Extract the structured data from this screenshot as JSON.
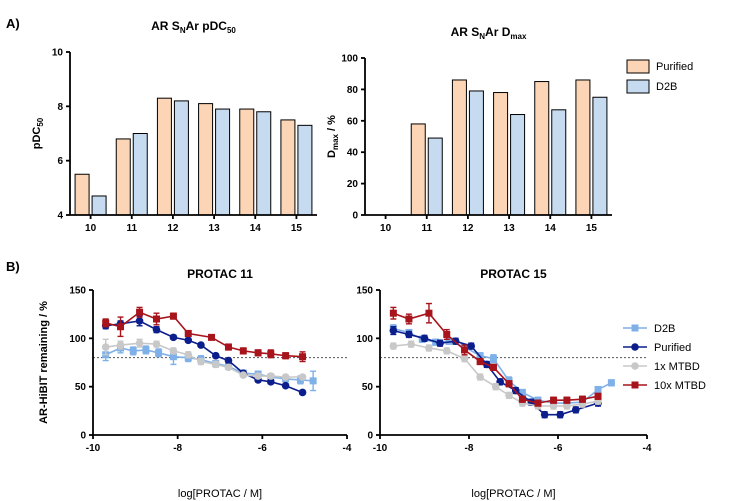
{
  "panel_labels": {
    "a": "A)",
    "b": "B)"
  },
  "colors": {
    "purified": "#FBD5B5",
    "d2b": "#C6DBEF",
    "bar_stroke": "#000000",
    "line_d2b": "#7FB1E8",
    "line_purified": "#0B1E8C",
    "line_1x": "#C8C8C8",
    "line_10x": "#A8141C",
    "ref_line": "#555555"
  },
  "chart_data": [
    {
      "id": "pdc50",
      "type": "bar",
      "title": {
        "main": "AR S",
        "sub": "N",
        "rest": "Ar pDC",
        "sub2": "50"
      },
      "ylabel": {
        "main": "pDC",
        "sub": "50"
      },
      "categories": [
        "10",
        "11",
        "12",
        "13",
        "14",
        "15"
      ],
      "yticks": [
        "4",
        "6",
        "8",
        "10"
      ],
      "ylim": [
        4,
        10
      ],
      "series": [
        {
          "name": "Purified",
          "values": [
            5.5,
            6.8,
            8.3,
            8.1,
            7.9,
            7.5
          ]
        },
        {
          "name": "D2B",
          "values": [
            4.7,
            7.0,
            8.2,
            7.9,
            7.8,
            7.3
          ]
        }
      ]
    },
    {
      "id": "dmax",
      "type": "bar",
      "title": {
        "main": "AR S",
        "sub": "N",
        "rest": "Ar D",
        "sub2": "max"
      },
      "ylabel": {
        "main": "D",
        "sub": "max",
        "rest": " / %"
      },
      "categories": [
        "10",
        "11",
        "12",
        "13",
        "14",
        "15"
      ],
      "yticks": [
        "0",
        "20",
        "40",
        "60",
        "80",
        "100"
      ],
      "ylim": [
        0,
        100
      ],
      "legend": [
        "Purified",
        "D2B"
      ],
      "series": [
        {
          "name": "Purified",
          "values": [
            0,
            58,
            86,
            78,
            85,
            86
          ]
        },
        {
          "name": "D2B",
          "values": [
            0,
            49,
            79,
            64,
            67,
            75
          ]
        }
      ]
    },
    {
      "id": "protac11",
      "type": "line",
      "title": "PROTAC 11",
      "xlabel": "log[PROTAC / M]",
      "ylabel": "AR-HiBIT remaining / %",
      "xlim": [
        -10,
        -4
      ],
      "ylim": [
        0,
        150
      ],
      "xticks": [
        "-10",
        "-8",
        "-6",
        "-4"
      ],
      "yticks": [
        "0",
        "50",
        "100",
        "150"
      ],
      "reference_y": 80,
      "series": [
        {
          "name": "D2B",
          "marker": "square",
          "x": [
            -9.7,
            -9.35,
            -9.05,
            -8.75,
            -8.45,
            -8.1,
            -7.75,
            -7.45,
            -7.1,
            -6.8,
            -6.45,
            -6.1,
            -5.8,
            -5.45,
            -5.1,
            -4.8
          ],
          "y": [
            83,
            90,
            87,
            88,
            85,
            81,
            80,
            78,
            74,
            71,
            64,
            63,
            60,
            58,
            57,
            56
          ],
          "err": [
            6,
            5,
            4,
            4,
            4,
            8,
            4,
            4,
            3,
            3,
            3,
            3,
            3,
            3,
            4,
            10
          ]
        },
        {
          "name": "Purified",
          "marker": "circle",
          "x": [
            -9.7,
            -9.35,
            -8.9,
            -8.5,
            -8.1,
            -7.75,
            -7.45,
            -7.1,
            -6.8,
            -6.45,
            -6.1,
            -5.8,
            -5.45,
            -5.05
          ],
          "y": [
            113,
            115,
            118,
            109,
            101,
            98,
            93,
            82,
            77,
            64,
            57,
            55,
            51,
            44
          ],
          "err": [
            3,
            3,
            5,
            3,
            2,
            2,
            2,
            2,
            2,
            2,
            2,
            2,
            2,
            2
          ]
        },
        {
          "name": "1x MTBD",
          "marker": "circle",
          "x": [
            -9.7,
            -9.35,
            -8.9,
            -8.5,
            -8.1,
            -7.75,
            -7.45,
            -7.1,
            -6.8,
            -6.45,
            -6.1,
            -5.8,
            -5.45,
            -5.05
          ],
          "y": [
            91,
            93,
            95,
            94,
            87,
            83,
            76,
            73,
            70,
            62,
            61,
            61,
            60,
            60
          ],
          "err": [
            8,
            4,
            4,
            3,
            3,
            3,
            3,
            3,
            2,
            2,
            2,
            2,
            2,
            2
          ]
        },
        {
          "name": "10x MTBD",
          "marker": "square",
          "x": [
            -9.7,
            -9.35,
            -8.9,
            -8.5,
            -8.1,
            -7.75,
            -7.2,
            -6.8,
            -6.45,
            -6.1,
            -5.8,
            -5.45,
            -5.05
          ],
          "y": [
            116,
            112,
            127,
            120,
            123,
            105,
            101,
            91,
            87,
            85,
            84,
            82,
            81
          ],
          "err": [
            4,
            10,
            5,
            6,
            3,
            3,
            2,
            3,
            3,
            3,
            4,
            3,
            5
          ]
        }
      ]
    },
    {
      "id": "protac15",
      "type": "line",
      "title": "PROTAC 15",
      "xlabel": "log[PROTAC / M]",
      "xlim": [
        -10,
        -4
      ],
      "ylim": [
        0,
        150
      ],
      "xticks": [
        "-10",
        "-8",
        "-6",
        "-4"
      ],
      "yticks": [
        "0",
        "50",
        "100",
        "150"
      ],
      "reference_y": 80,
      "legend": [
        "D2B",
        "Purified",
        "1x MTBD",
        "10x MTBD"
      ],
      "series": [
        {
          "name": "D2B",
          "marker": "square",
          "x": [
            -9.7,
            -9.35,
            -9.05,
            -8.75,
            -8.45,
            -8.1,
            -7.75,
            -7.45,
            -7.1,
            -6.8,
            -6.45,
            -6.1,
            -5.8,
            -5.45,
            -5.1,
            -4.8
          ],
          "y": [
            110,
            106,
            99,
            96,
            97,
            91,
            82,
            79,
            56,
            44,
            36,
            33,
            33,
            34,
            47,
            54
          ],
          "err": [
            4,
            3,
            3,
            3,
            3,
            3,
            3,
            4,
            4,
            3,
            3,
            3,
            3,
            3,
            3,
            3
          ]
        },
        {
          "name": "Purified",
          "marker": "circle",
          "x": [
            -9.7,
            -9.35,
            -9.0,
            -8.65,
            -8.3,
            -7.95,
            -7.6,
            -7.3,
            -6.95,
            -6.6,
            -6.3,
            -5.95,
            -5.6,
            -5.1
          ],
          "y": [
            108,
            104,
            100,
            95,
            97,
            92,
            73,
            55,
            46,
            34,
            21,
            21,
            26,
            33
          ],
          "err": [
            4,
            3,
            3,
            3,
            3,
            3,
            3,
            3,
            3,
            3,
            3,
            3,
            3,
            3
          ]
        },
        {
          "name": "1x MTBD",
          "marker": "circle",
          "x": [
            -9.7,
            -9.3,
            -8.9,
            -8.5,
            -8.1,
            -7.75,
            -7.4,
            -7.1,
            -6.8,
            -6.45,
            -6.1,
            -5.8,
            -5.45,
            -5.1
          ],
          "y": [
            92,
            94,
            90,
            87,
            79,
            60,
            50,
            41,
            33,
            30,
            30,
            30,
            32,
            35
          ],
          "err": [
            3,
            3,
            3,
            3,
            3,
            3,
            3,
            3,
            3,
            3,
            3,
            3,
            3,
            3
          ]
        },
        {
          "name": "10x MTBD",
          "marker": "square",
          "x": [
            -9.7,
            -9.35,
            -8.9,
            -8.5,
            -8.1,
            -7.75,
            -7.45,
            -7.1,
            -6.8,
            -6.45,
            -6.1,
            -5.8,
            -5.45,
            -5.1
          ],
          "y": [
            126,
            120,
            126,
            104,
            88,
            76,
            70,
            53,
            37,
            33,
            36,
            36,
            37,
            40
          ],
          "err": [
            6,
            5,
            10,
            5,
            5,
            3,
            3,
            3,
            3,
            3,
            3,
            3,
            3,
            3
          ]
        }
      ]
    }
  ]
}
